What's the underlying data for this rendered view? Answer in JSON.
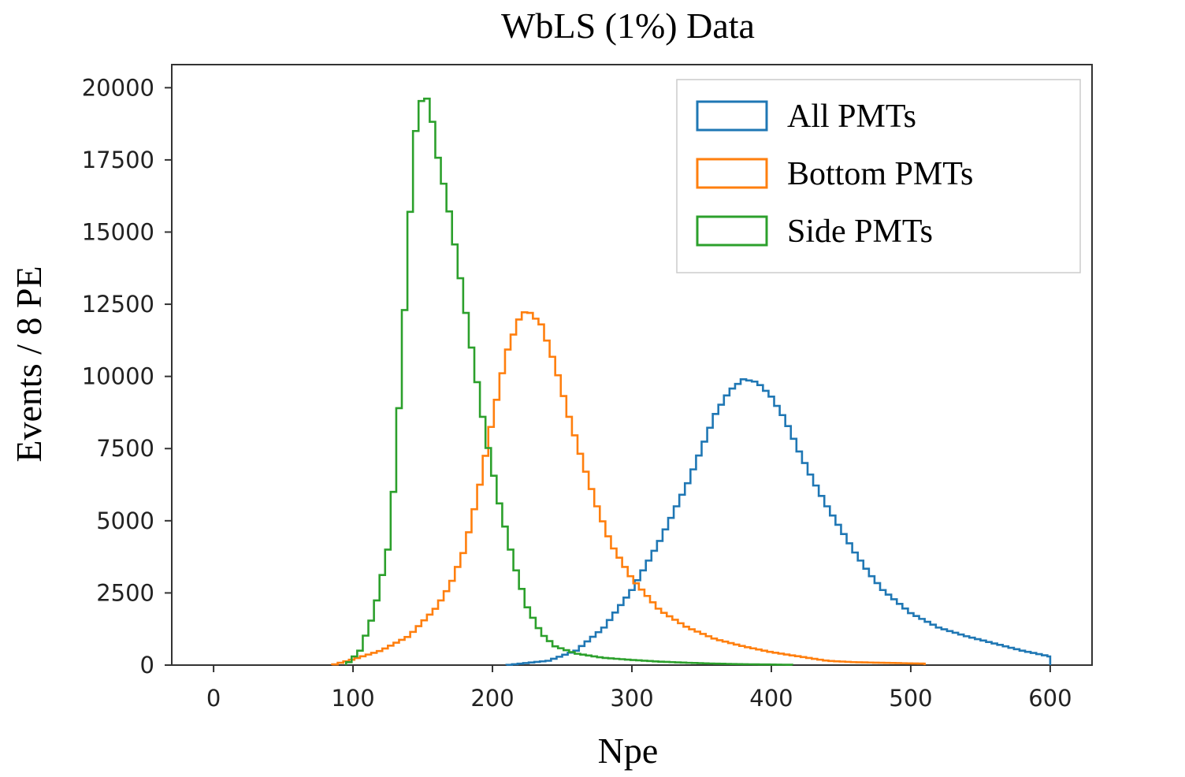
{
  "chart_data": {
    "type": "histogram",
    "title": "WbLS (1%) Data",
    "xlabel": "Npe",
    "ylabel": "Events / 8 PE",
    "xlim": [
      -30,
      630
    ],
    "ylim": [
      0,
      20800
    ],
    "xticks": [
      0,
      100,
      200,
      300,
      400,
      500,
      600
    ],
    "yticks": [
      0,
      2500,
      5000,
      7500,
      10000,
      12500,
      15000,
      17500,
      20000
    ],
    "xtick_labels": [
      "0",
      "100",
      "200",
      "300",
      "400",
      "500",
      "600"
    ],
    "ytick_labels": [
      "0",
      "2500",
      "5000",
      "7500",
      "10000",
      "12500",
      "15000",
      "17500",
      "20000"
    ],
    "grid": false,
    "legend_position": "top-right",
    "bin_width": 8,
    "series": [
      {
        "name": "All PMTs",
        "color": "#1f77b4",
        "points": [
          [
            210,
            0
          ],
          [
            240,
            150
          ],
          [
            260,
            500
          ],
          [
            280,
            1300
          ],
          [
            300,
            2600
          ],
          [
            320,
            4300
          ],
          [
            340,
            6300
          ],
          [
            350,
            7500
          ],
          [
            360,
            8700
          ],
          [
            370,
            9500
          ],
          [
            380,
            9900
          ],
          [
            390,
            9800
          ],
          [
            400,
            9300
          ],
          [
            410,
            8500
          ],
          [
            420,
            7400
          ],
          [
            430,
            6400
          ],
          [
            440,
            5500
          ],
          [
            450,
            4700
          ],
          [
            460,
            3900
          ],
          [
            470,
            3200
          ],
          [
            480,
            2600
          ],
          [
            500,
            1800
          ],
          [
            520,
            1300
          ],
          [
            540,
            1000
          ],
          [
            560,
            750
          ],
          [
            580,
            500
          ],
          [
            600,
            300
          ]
        ]
      },
      {
        "name": "Bottom PMTs",
        "color": "#ff7f0e",
        "points": [
          [
            85,
            0
          ],
          [
            100,
            200
          ],
          [
            120,
            500
          ],
          [
            140,
            1000
          ],
          [
            160,
            2000
          ],
          [
            170,
            2800
          ],
          [
            180,
            4000
          ],
          [
            190,
            6000
          ],
          [
            200,
            8500
          ],
          [
            210,
            10800
          ],
          [
            220,
            12100
          ],
          [
            225,
            12300
          ],
          [
            235,
            11800
          ],
          [
            245,
            10400
          ],
          [
            255,
            8600
          ],
          [
            265,
            7000
          ],
          [
            275,
            5500
          ],
          [
            285,
            4200
          ],
          [
            300,
            3000
          ],
          [
            320,
            1900
          ],
          [
            340,
            1300
          ],
          [
            360,
            900
          ],
          [
            380,
            650
          ],
          [
            400,
            450
          ],
          [
            420,
            300
          ],
          [
            440,
            150
          ],
          [
            460,
            100
          ],
          [
            480,
            80
          ],
          [
            510,
            50
          ]
        ]
      },
      {
        "name": "Side PMTs",
        "color": "#2ca02c",
        "points": [
          [
            95,
            0
          ],
          [
            105,
            500
          ],
          [
            115,
            1800
          ],
          [
            125,
            4000
          ],
          [
            130,
            6500
          ],
          [
            135,
            10500
          ],
          [
            140,
            15000
          ],
          [
            145,
            18500
          ],
          [
            150,
            19800
          ],
          [
            155,
            19500
          ],
          [
            160,
            17800
          ],
          [
            168,
            16000
          ],
          [
            175,
            14000
          ],
          [
            185,
            11000
          ],
          [
            195,
            8000
          ],
          [
            205,
            5600
          ],
          [
            215,
            3600
          ],
          [
            225,
            2000
          ],
          [
            235,
            1100
          ],
          [
            245,
            650
          ],
          [
            260,
            400
          ],
          [
            280,
            250
          ],
          [
            300,
            180
          ],
          [
            320,
            120
          ],
          [
            340,
            80
          ],
          [
            360,
            50
          ],
          [
            380,
            30
          ],
          [
            400,
            20
          ],
          [
            415,
            10
          ]
        ]
      }
    ]
  }
}
